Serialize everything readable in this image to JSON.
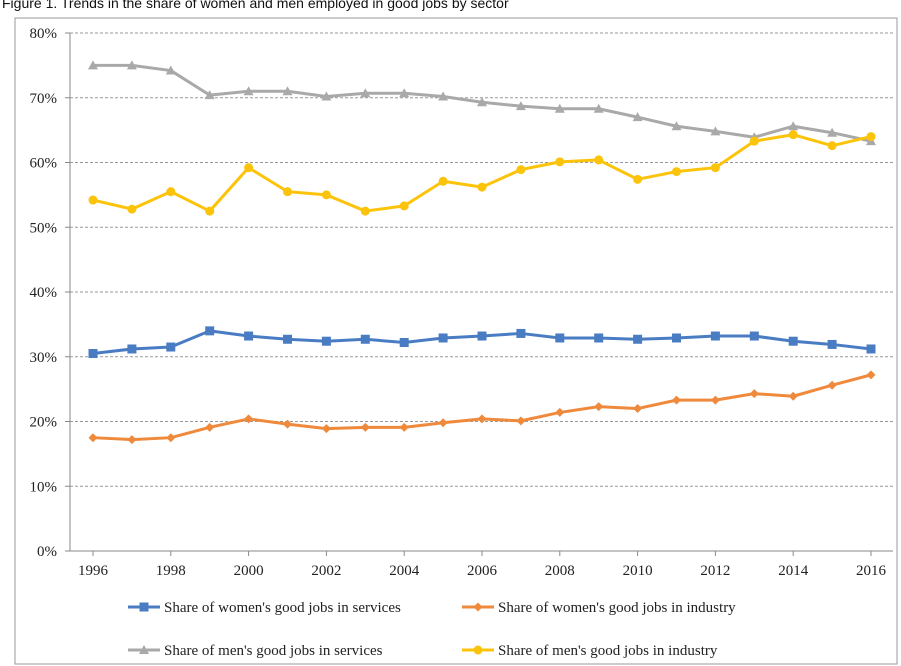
{
  "chart_data": {
    "type": "line",
    "title": "Figure 1. Trends in the share of women and men employed in good jobs by sector",
    "x": [
      1996,
      1997,
      1998,
      1999,
      2000,
      2001,
      2002,
      2003,
      2004,
      2005,
      2006,
      2007,
      2008,
      2009,
      2010,
      2011,
      2012,
      2013,
      2014,
      2015,
      2016
    ],
    "xlim": [
      1996,
      2016
    ],
    "xticks": [
      1996,
      1998,
      2000,
      2002,
      2004,
      2006,
      2008,
      2010,
      2012,
      2014,
      2016
    ],
    "ylim": [
      0,
      80
    ],
    "yticks": [
      {
        "value": 0,
        "label": "0%"
      },
      {
        "value": 10,
        "label": "10%"
      },
      {
        "value": 20,
        "label": "20%"
      },
      {
        "value": 30,
        "label": "30%"
      },
      {
        "value": 40,
        "label": "40%"
      },
      {
        "value": 50,
        "label": "50%"
      },
      {
        "value": 60,
        "label": "60%"
      },
      {
        "value": 70,
        "label": "70%"
      },
      {
        "value": 80,
        "label": "80%"
      }
    ],
    "grid": true,
    "series": [
      {
        "name": "Share of women's good jobs in services",
        "color": "#4a7cc4",
        "marker": "square",
        "values": [
          30.5,
          31.2,
          31.5,
          34.0,
          33.2,
          32.7,
          32.4,
          32.7,
          32.2,
          32.9,
          33.2,
          33.6,
          32.9,
          32.9,
          32.7,
          32.9,
          33.2,
          33.2,
          32.4,
          31.9,
          31.2
        ]
      },
      {
        "name": "Share of women's good jobs in industry",
        "color": "#ef8a3c",
        "marker": "diamond",
        "values": [
          17.5,
          17.2,
          17.5,
          19.1,
          20.4,
          19.6,
          18.9,
          19.1,
          19.1,
          19.8,
          20.4,
          20.1,
          21.4,
          22.3,
          22.0,
          23.3,
          23.3,
          24.3,
          23.9,
          25.6,
          27.2
        ]
      },
      {
        "name": "Share of men's good jobs in services",
        "color": "#a9a9a9",
        "marker": "triangle",
        "values": [
          75.0,
          75.0,
          74.2,
          70.4,
          71.0,
          71.0,
          70.2,
          70.7,
          70.7,
          70.2,
          69.3,
          68.7,
          68.3,
          68.3,
          67.0,
          65.6,
          64.8,
          63.9,
          65.6,
          64.6,
          63.3
        ]
      },
      {
        "name": "Share of men's good jobs in industry",
        "color": "#fcc30b",
        "marker": "circle",
        "values": [
          54.2,
          52.8,
          55.5,
          52.5,
          59.2,
          55.5,
          55.0,
          52.5,
          53.3,
          57.1,
          56.2,
          58.9,
          60.1,
          60.4,
          57.4,
          58.6,
          59.2,
          63.3,
          64.3,
          62.6,
          64.0
        ]
      }
    ]
  }
}
